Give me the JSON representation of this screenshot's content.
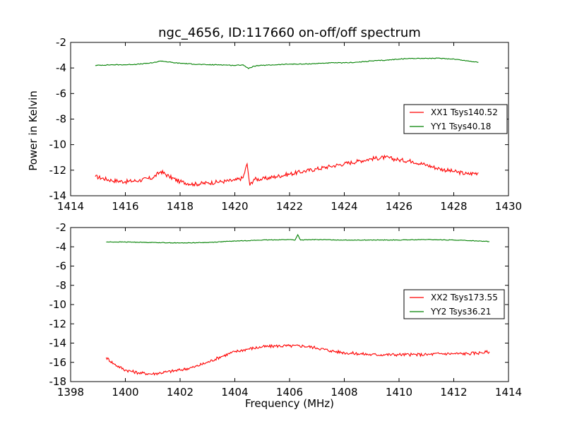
{
  "title": "ngc_4656, ID:117660 on-off/off spectrum",
  "ylabel": "Power in Kelvin",
  "xlabel": "Frequency (MHz)",
  "colors": {
    "series_xx": "#ff0000",
    "series_yy": "#008000"
  },
  "chart_data": [
    {
      "type": "line",
      "xlim": [
        1414,
        1430
      ],
      "ylim": [
        -14,
        -2
      ],
      "xticks": [
        "1414",
        "1416",
        "1418",
        "1420",
        "1422",
        "1424",
        "1426",
        "1428",
        "1430"
      ],
      "yticks": [
        "-2",
        "-4",
        "-6",
        "-8",
        "-10",
        "-12",
        "-14"
      ],
      "legend_position": "right",
      "series": [
        {
          "name": "XX1 Tsys140.52",
          "color": "#ff0000",
          "x": [
            1414.9,
            1415.5,
            1416.0,
            1416.5,
            1417.0,
            1417.3,
            1417.6,
            1418.0,
            1418.5,
            1419.0,
            1419.5,
            1420.0,
            1420.3,
            1420.45,
            1420.55,
            1420.7,
            1421.0,
            1421.5,
            1422.0,
            1422.5,
            1423.0,
            1423.5,
            1424.0,
            1424.5,
            1425.0,
            1425.5,
            1426.0,
            1426.5,
            1427.0,
            1427.5,
            1428.0,
            1428.5,
            1428.9
          ],
          "y": [
            -12.5,
            -12.8,
            -12.9,
            -12.8,
            -12.6,
            -12.1,
            -12.5,
            -12.9,
            -13.1,
            -13.0,
            -12.9,
            -12.8,
            -12.6,
            -11.5,
            -13.2,
            -12.7,
            -12.7,
            -12.5,
            -12.3,
            -12.1,
            -11.9,
            -11.7,
            -11.5,
            -11.3,
            -11.1,
            -11.0,
            -11.2,
            -11.3,
            -11.6,
            -11.9,
            -12.1,
            -12.3,
            -12.2
          ]
        },
        {
          "name": "YY1 Tsys40.18",
          "color": "#008000",
          "x": [
            1414.9,
            1415.5,
            1416.0,
            1416.5,
            1417.0,
            1417.3,
            1417.8,
            1418.5,
            1419.0,
            1419.5,
            1420.0,
            1420.3,
            1420.5,
            1420.7,
            1421.0,
            1421.5,
            1422.0,
            1422.5,
            1423.0,
            1423.5,
            1424.0,
            1424.5,
            1425.0,
            1425.5,
            1426.0,
            1426.5,
            1427.0,
            1427.5,
            1428.0,
            1428.5,
            1428.9
          ],
          "y": [
            -3.8,
            -3.75,
            -3.75,
            -3.7,
            -3.6,
            -3.45,
            -3.6,
            -3.7,
            -3.75,
            -3.75,
            -3.8,
            -3.75,
            -4.05,
            -3.85,
            -3.8,
            -3.75,
            -3.7,
            -3.7,
            -3.65,
            -3.6,
            -3.6,
            -3.55,
            -3.45,
            -3.4,
            -3.3,
            -3.25,
            -3.25,
            -3.25,
            -3.3,
            -3.45,
            -3.55
          ]
        }
      ]
    },
    {
      "type": "line",
      "xlim": [
        1398,
        1414
      ],
      "ylim": [
        -18,
        -2
      ],
      "xticks": [
        "1398",
        "1400",
        "1402",
        "1404",
        "1406",
        "1408",
        "1410",
        "1412",
        "1414"
      ],
      "yticks": [
        "-2",
        "-4",
        "-6",
        "-8",
        "-10",
        "-12",
        "-14",
        "-16",
        "-18"
      ],
      "legend_position": "right",
      "series": [
        {
          "name": "XX2 Tsys173.55",
          "color": "#ff0000",
          "x": [
            1399.3,
            1399.6,
            1400.0,
            1400.5,
            1401.0,
            1401.5,
            1402.0,
            1402.5,
            1403.0,
            1403.5,
            1404.0,
            1404.5,
            1405.0,
            1405.5,
            1406.0,
            1406.5,
            1407.0,
            1407.5,
            1408.0,
            1408.5,
            1409.0,
            1409.5,
            1410.0,
            1410.5,
            1411.0,
            1411.5,
            1412.0,
            1412.5,
            1413.0,
            1413.3
          ],
          "y": [
            -15.5,
            -16.2,
            -16.8,
            -17.1,
            -17.2,
            -17.0,
            -16.8,
            -16.5,
            -16.0,
            -15.4,
            -14.9,
            -14.6,
            -14.4,
            -14.3,
            -14.3,
            -14.3,
            -14.5,
            -14.8,
            -15.0,
            -15.1,
            -15.2,
            -15.2,
            -15.2,
            -15.2,
            -15.2,
            -15.1,
            -15.1,
            -15.1,
            -15.0,
            -14.9
          ]
        },
        {
          "name": "YY2 Tsys36.21",
          "color": "#008000",
          "x": [
            1399.3,
            1400.0,
            1401.0,
            1402.0,
            1403.0,
            1404.0,
            1405.0,
            1406.0,
            1406.2,
            1406.3,
            1406.4,
            1407.0,
            1408.0,
            1409.0,
            1410.0,
            1411.0,
            1412.0,
            1413.0,
            1413.3
          ],
          "y": [
            -3.5,
            -3.5,
            -3.55,
            -3.6,
            -3.55,
            -3.4,
            -3.3,
            -3.25,
            -3.3,
            -2.75,
            -3.3,
            -3.25,
            -3.3,
            -3.3,
            -3.3,
            -3.25,
            -3.3,
            -3.4,
            -3.45
          ]
        }
      ]
    }
  ]
}
